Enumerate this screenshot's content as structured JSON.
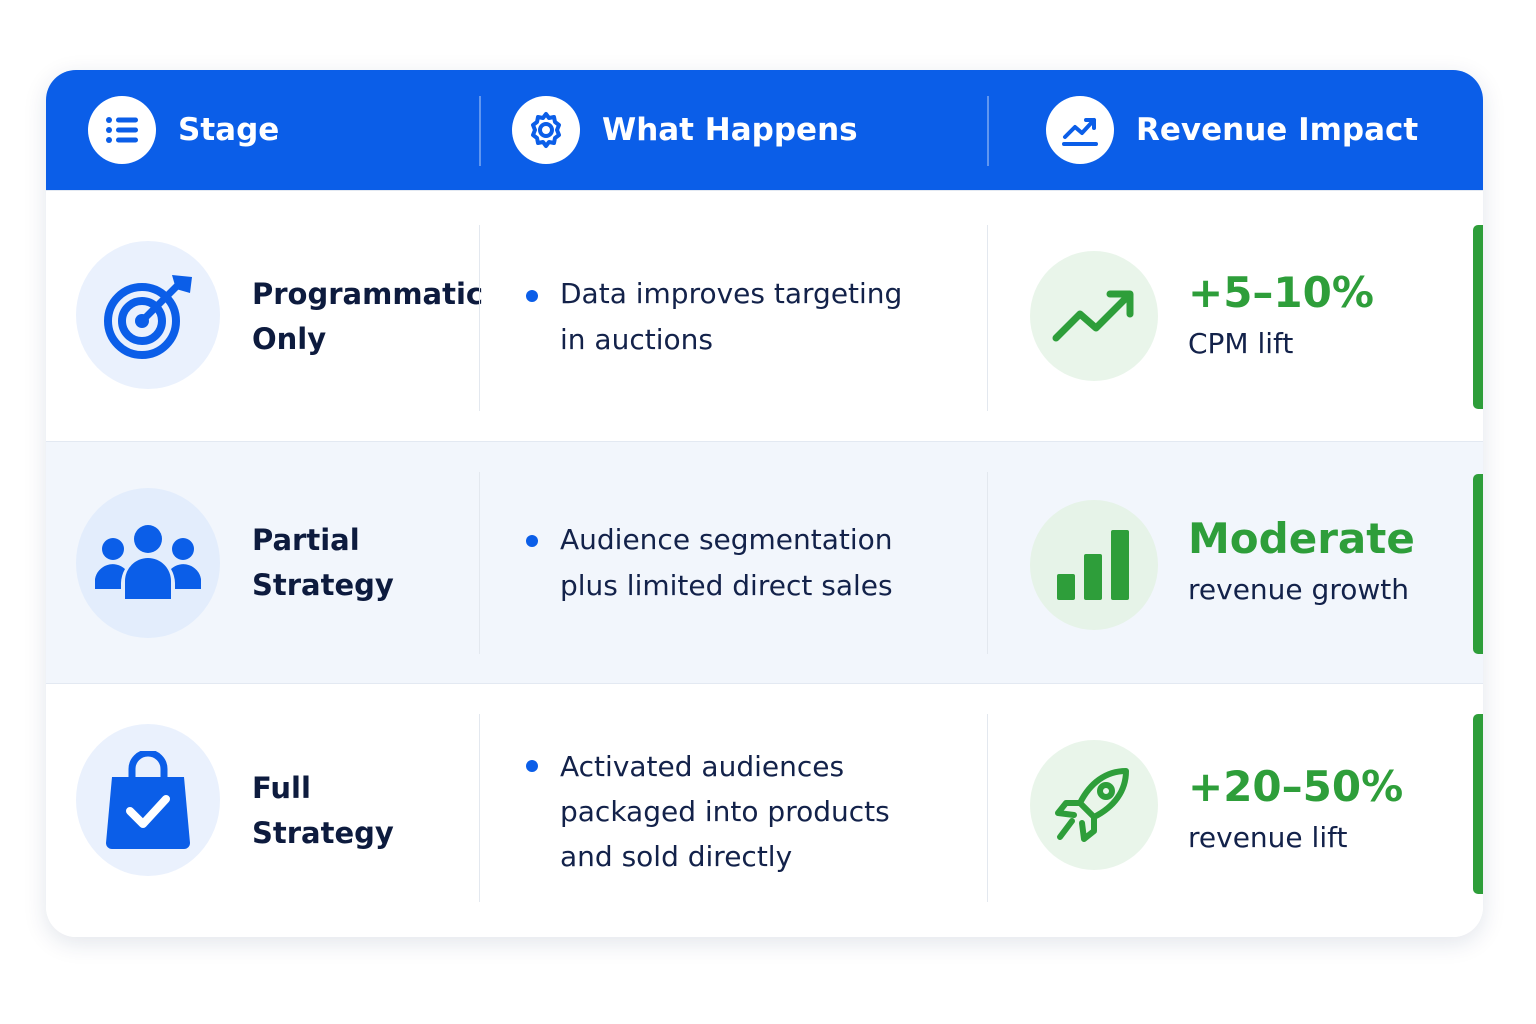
{
  "table": {
    "headers": [
      "Stage",
      "What Happens",
      "Revenue Impact"
    ],
    "rows": [
      {
        "stage": [
          "Programmatic",
          "Only"
        ],
        "description": [
          "Data improves targeting",
          "in auctions"
        ],
        "impact": "+5–10%",
        "note": "CPM lift"
      },
      {
        "stage": [
          "Partial",
          "Strategy"
        ],
        "description": [
          "Audience segmentation",
          "plus limited direct sales"
        ],
        "impact": "Moderate",
        "note": "revenue growth"
      },
      {
        "stage": [
          "Full",
          "Strategy"
        ],
        "description": [
          "Activated audiences",
          "packaged into products",
          "and sold directly"
        ],
        "impact": "+20–50%",
        "note": "revenue lift"
      }
    ]
  }
}
